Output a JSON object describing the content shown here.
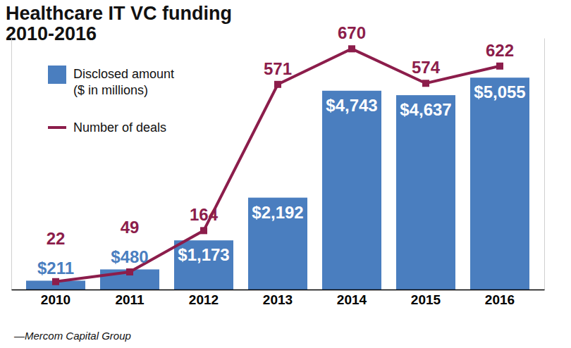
{
  "chart_data": {
    "type": "bar",
    "title": "Healthcare IT VC funding 2010-2016",
    "source": "—Mercom Capital Group",
    "categories": [
      "2010",
      "2011",
      "2012",
      "2013",
      "2014",
      "2015",
      "2016"
    ],
    "series": [
      {
        "name": "Disclosed amount ($ in millions)",
        "type": "bar",
        "color": "#4a7ebf",
        "values": [
          211,
          480,
          1173,
          2192,
          4743,
          4637,
          5055
        ],
        "value_labels": [
          "$211",
          "$480",
          "$1,173",
          "$2,192",
          "$4,743",
          "$4,637",
          "$5,055"
        ]
      },
      {
        "name": "Number of deals",
        "type": "line",
        "axis": "y2",
        "color": "#8c1d4b",
        "marker": "square",
        "values": [
          22,
          49,
          164,
          571,
          670,
          574,
          622
        ]
      }
    ],
    "ylim": [
      0,
      6000
    ],
    "y2lim": [
      0,
      700
    ],
    "data_labels": true,
    "tick_labels": "x",
    "legend": "top-left",
    "grid": false
  }
}
